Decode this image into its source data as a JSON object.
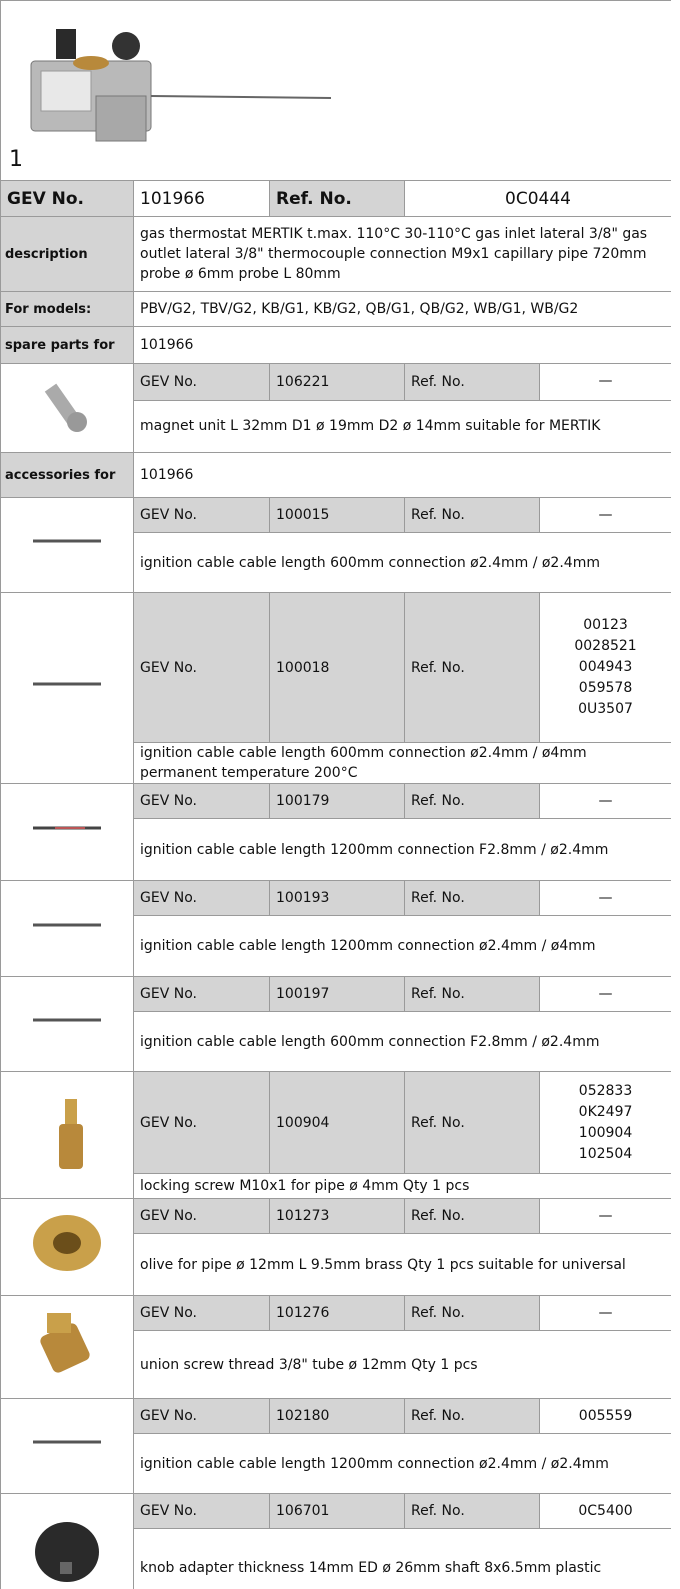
{
  "header": {
    "image_label": "1",
    "gev_label": "GEV No.",
    "gev": "101966",
    "ref_label": "Ref. No.",
    "ref": "0C0444"
  },
  "description": {
    "label": "description",
    "text": "gas thermostat  MERTIK t.max. 110°C 30-110°C gas inlet lateral 3/8\" gas outlet lateral 3/8\" thermocouple connection M9x1 capillary pipe 720mm probe ø 6mm probe L 80mm"
  },
  "models": {
    "label": "For models:",
    "text": "PBV/G2, TBV/G2, KB/G1, KB/G2, QB/G1, QB/G2, WB/G1, WB/G2"
  },
  "spare_parts": {
    "label": "spare parts for",
    "for": "101966",
    "items": [
      {
        "gev_label": "GEV No.",
        "gev": "106221",
        "ref_label": "Ref. No.",
        "refs": [
          "—"
        ],
        "text": "magnet unit  L 32mm D1 ø 19mm D2 ø 14mm suitable for MERTIK"
      }
    ]
  },
  "accessories": {
    "label": "accessories for",
    "for": "101966",
    "items": [
      {
        "gev_label": "GEV No.",
        "gev": "100015",
        "ref_label": "Ref. No.",
        "refs": [
          "—"
        ],
        "text": "ignition cable  cable length 600mm connection ø2.4mm / ø2.4mm"
      },
      {
        "gev_label": "GEV No.",
        "gev": "100018",
        "ref_label": "Ref. No.",
        "refs": [
          "00123",
          "0028521",
          "004943",
          "059578",
          "0U3507"
        ],
        "text": "ignition cable  cable length 600mm connection ø2.4mm / ø4mm permanent temperature 200°C"
      },
      {
        "gev_label": "GEV No.",
        "gev": "100179",
        "ref_label": "Ref. No.",
        "refs": [
          "—"
        ],
        "text": "ignition cable  cable length 1200mm connection F2.8mm / ø2.4mm"
      },
      {
        "gev_label": "GEV No.",
        "gev": "100193",
        "ref_label": "Ref. No.",
        "refs": [
          "—"
        ],
        "text": "ignition cable  cable length 1200mm connection ø2.4mm / ø4mm"
      },
      {
        "gev_label": "GEV No.",
        "gev": "100197",
        "ref_label": "Ref. No.",
        "refs": [
          "—"
        ],
        "text": "ignition cable  cable length 600mm connection F2.8mm / ø2.4mm"
      },
      {
        "gev_label": "GEV No.",
        "gev": "100904",
        "ref_label": "Ref. No.",
        "refs": [
          "052833",
          "0K2497",
          "100904",
          "102504"
        ],
        "text": "locking screw  M10x1 for pipe ø 4mm Qty 1 pcs"
      },
      {
        "gev_label": "GEV No.",
        "gev": "101273",
        "ref_label": "Ref. No.",
        "refs": [
          "—"
        ],
        "text": "olive  for pipe ø 12mm L 9.5mm brass Qty 1 pcs suitable for universal"
      },
      {
        "gev_label": "GEV No.",
        "gev": "101276",
        "ref_label": "Ref. No.",
        "refs": [
          "—"
        ],
        "text": "union screw  thread 3/8\" tube ø 12mm Qty 1 pcs"
      },
      {
        "gev_label": "GEV No.",
        "gev": "102180",
        "ref_label": "Ref. No.",
        "refs": [
          "005559"
        ],
        "text": "ignition cable  cable length 1200mm connection ø2.4mm / ø2.4mm"
      },
      {
        "gev_label": "GEV No.",
        "gev": "106701",
        "ref_label": "Ref. No.",
        "refs": [
          "0C5400"
        ],
        "text": "knob adapter  thickness 14mm ED ø 26mm shaft 8x6.5mm plastic"
      }
    ]
  }
}
